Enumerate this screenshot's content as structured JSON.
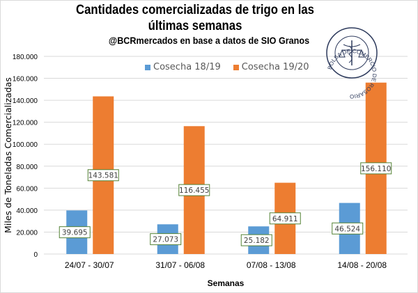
{
  "chart_data": {
    "type": "bar",
    "title": "Cantidades comercializadas de trigo en las últimas semanas",
    "subtitle": "@BCRmercados en base a datos de SIO Granos",
    "xlabel": "Semanas",
    "ylabel": "Miles de Toneladas Comercializadas",
    "ylim": [
      0,
      180000
    ],
    "yticks": [
      "0",
      "20.000",
      "40.000",
      "60.000",
      "80.000",
      "100.000",
      "120.000",
      "140.000",
      "160.000",
      "180.000"
    ],
    "ytick_values": [
      0,
      20000,
      40000,
      60000,
      80000,
      100000,
      120000,
      140000,
      160000,
      180000
    ],
    "grid": true,
    "legend_position": "top",
    "categories": [
      "24/07 - 30/07",
      "31/07 - 06/08",
      "07/08 - 13/08",
      "14/08 - 20/08"
    ],
    "series": [
      {
        "name": "Cosecha 18/19",
        "color": "#5b9bd5",
        "values": [
          39695,
          27073,
          25182,
          46524
        ],
        "labels": [
          "39.695",
          "27.073",
          "25.182",
          "46.524"
        ]
      },
      {
        "name": "Cosecha 19/20",
        "color": "#ed7d31",
        "values": [
          143581,
          116455,
          64911,
          156110
        ],
        "labels": [
          "143.581",
          "116.455",
          "64.911",
          "156.110"
        ]
      }
    ]
  },
  "logo": {
    "text": "BOLSA DE COMERCIO DE ROSARIO"
  }
}
